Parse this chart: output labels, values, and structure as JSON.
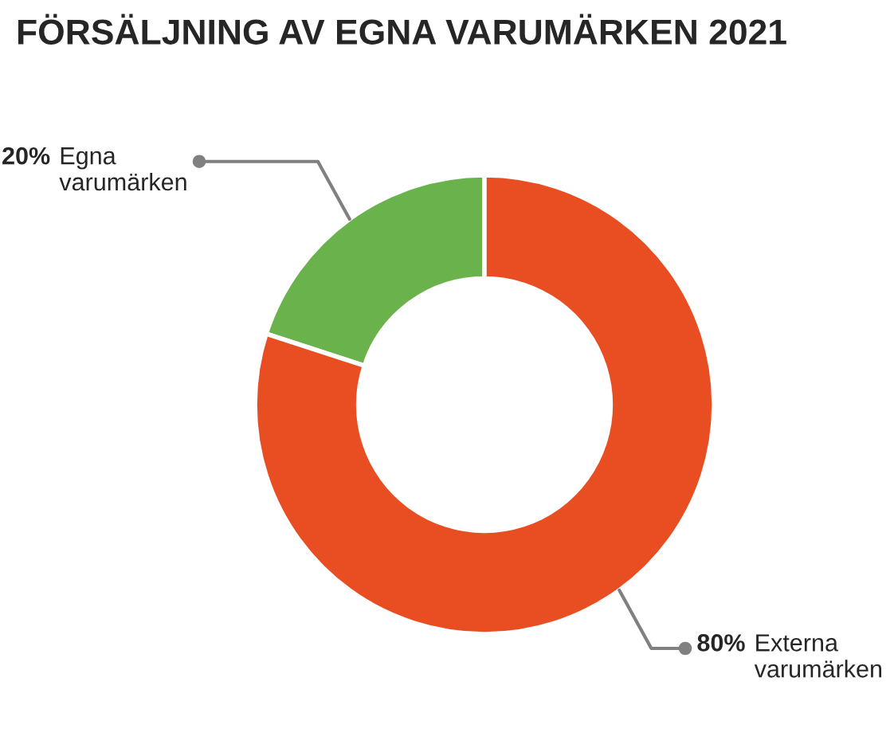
{
  "chart_data": {
    "type": "donut",
    "title": "FÖRSÄLJNING AV EGNA VARUMÄRKEN 2021",
    "categories": [
      "Egna varumärken",
      "Externa varumärken"
    ],
    "values": [
      20,
      80
    ],
    "colors": [
      "#6ab34c",
      "#e94e22"
    ],
    "value_labels": [
      "20%",
      "80%"
    ]
  }
}
